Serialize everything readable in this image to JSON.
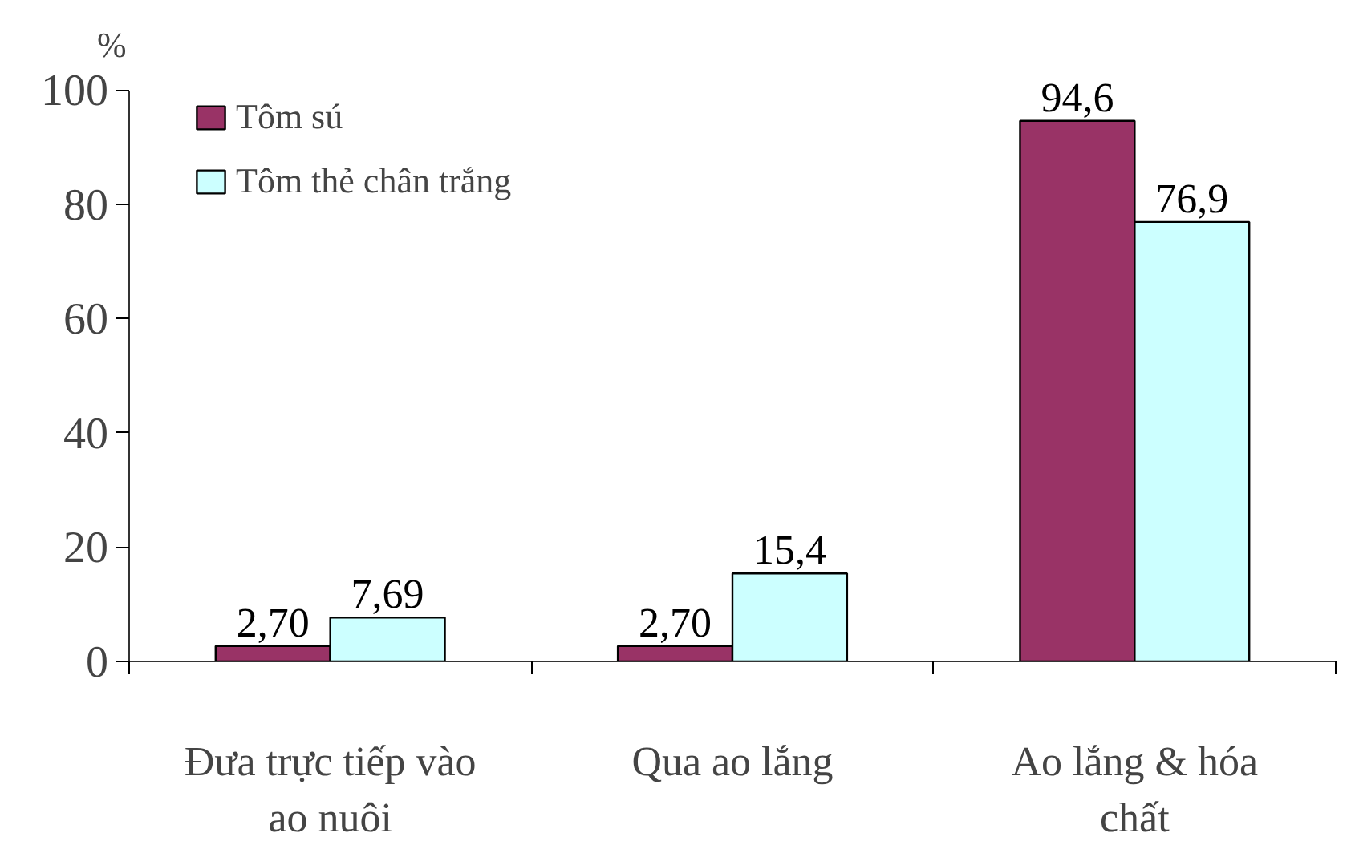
{
  "chart_data": {
    "type": "bar",
    "ylabel": "%",
    "categories": [
      "Đưa trực tiếp vào ao nuôi",
      "Qua ao lắng",
      "Ao lắng & hóa chất"
    ],
    "series": [
      {
        "name": "Tôm sú",
        "color": "#993366",
        "values": [
          2.7,
          2.7,
          94.6
        ],
        "value_labels": [
          "2,70",
          "2,70",
          "94,6"
        ]
      },
      {
        "name": "Tôm thẻ chân trắng",
        "color": "#ccffff",
        "values": [
          7.69,
          15.4,
          76.9
        ],
        "value_labels": [
          "7,69",
          "15,4",
          "76,9"
        ]
      }
    ],
    "ylim": [
      0,
      100
    ],
    "yticks": [
      0,
      20,
      40,
      60,
      80,
      100
    ],
    "grid": false,
    "legend": "top left"
  }
}
